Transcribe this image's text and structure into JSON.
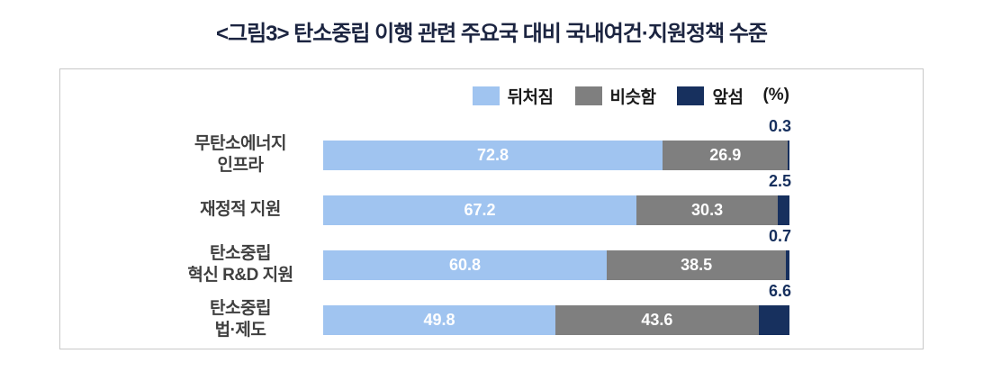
{
  "title": "<그림3> 탄소중립 이행 관련 주요국 대비 국내여건·지원정책 수준",
  "unit_label": "(%)",
  "colors": {
    "behind": "#A0C4F0",
    "similar": "#7F7F7F",
    "ahead": "#17305E"
  },
  "chart_data": {
    "type": "bar",
    "orientation": "horizontal",
    "stacked": true,
    "unit": "%",
    "xlim": [
      0,
      100
    ],
    "legend_position": "top-right",
    "value_labels": "inside segments in white; 'ahead' series value above right end of bar",
    "categories": [
      [
        "무탄소에너지",
        "인프라"
      ],
      [
        "재정적 지원"
      ],
      [
        "탄소중립",
        "혁신 R&D 지원"
      ],
      [
        "탄소중립",
        "법·제도"
      ]
    ],
    "series": [
      {
        "name": "뒤처짐",
        "key": "behind",
        "color": "#A0C4F0",
        "values": [
          72.8,
          67.2,
          60.8,
          49.8
        ]
      },
      {
        "name": "비슷함",
        "key": "similar",
        "color": "#7F7F7F",
        "values": [
          26.9,
          30.3,
          38.5,
          43.6
        ]
      },
      {
        "name": "앞섬",
        "key": "ahead",
        "color": "#17305E",
        "values": [
          0.3,
          2.5,
          0.7,
          6.6
        ]
      }
    ]
  }
}
